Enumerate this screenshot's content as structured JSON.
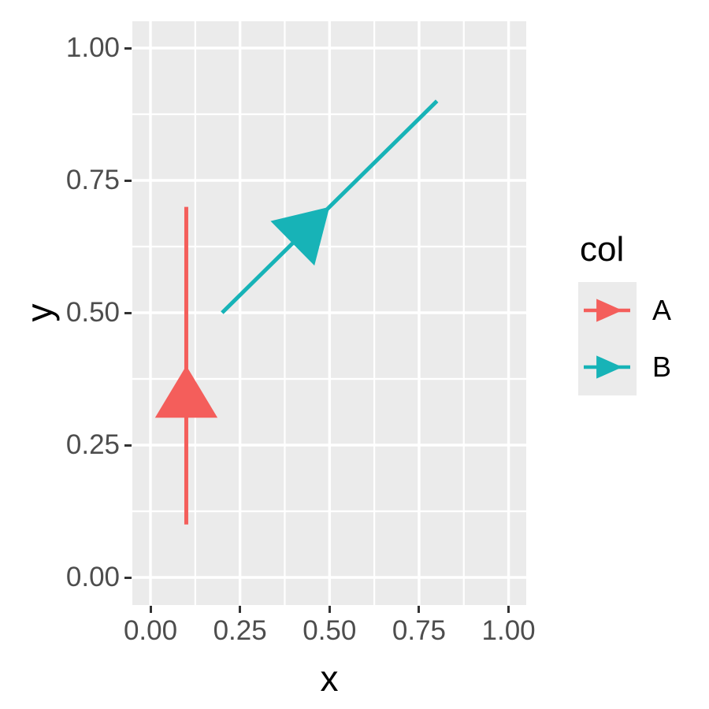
{
  "figure": {
    "background": "#FFFFFF"
  },
  "chart_data": {
    "type": "line",
    "subtype": "segments-with-midpoint-arrowheads",
    "title": "",
    "xlabel": "x",
    "ylabel": "y",
    "xlim": [
      0,
      1
    ],
    "ylim": [
      0,
      1
    ],
    "grid": "on",
    "legend_position": "right",
    "panel": {
      "bg": "#EBEBEB",
      "grid_color": "#FFFFFF",
      "tick_color": "#333333",
      "tick_label_color": "#4D4D4D"
    },
    "x_ticks": {
      "values": [
        0,
        0.25,
        0.5,
        0.75,
        1
      ],
      "labels": [
        "0.00",
        "0.25",
        "0.50",
        "0.75",
        "1.00"
      ],
      "minor": [
        0.125,
        0.375,
        0.625,
        0.875
      ]
    },
    "y_ticks": {
      "values": [
        0,
        0.25,
        0.5,
        0.75,
        1
      ],
      "labels": [
        "0.00",
        "0.25",
        "0.50",
        "0.75",
        "1.00"
      ],
      "minor": [
        0.125,
        0.375,
        0.625,
        0.875
      ]
    },
    "series": [
      {
        "name": "A",
        "color": "#F45E5B",
        "from": [
          0.1,
          0.1
        ],
        "to": [
          0.1,
          0.7
        ],
        "arrow_at": [
          0.1,
          0.4
        ]
      },
      {
        "name": "B",
        "color": "#17B3B7",
        "from": [
          0.2,
          0.5
        ],
        "to": [
          0.8,
          0.9
        ],
        "arrow_at": [
          0.5,
          0.7
        ]
      }
    ],
    "legend": {
      "title": "col",
      "entries": [
        {
          "label": "A",
          "color": "#F45E5B"
        },
        {
          "label": "B",
          "color": "#17B3B7"
        }
      ]
    }
  }
}
